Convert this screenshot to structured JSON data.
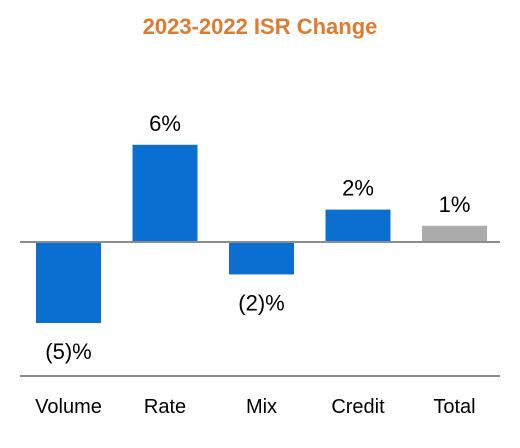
{
  "chart_data": {
    "type": "bar",
    "title": "2023-2022 ISR Change",
    "categories": [
      "Volume",
      "Rate",
      "Mix",
      "Credit",
      "Total"
    ],
    "values": [
      -5,
      6,
      -2,
      2,
      1
    ],
    "data_labels": [
      "(5)%",
      "6%",
      "(2)%",
      "2%",
      "1%"
    ],
    "xlabel": "",
    "ylabel": "",
    "ylim": [
      -6,
      6
    ],
    "grid": false,
    "legend": "none",
    "colors": {
      "title": "#E07A30",
      "bar": "#0A6FD0",
      "total_bar": "#ABABAB",
      "baseline": "#8C8C8C",
      "axis_line": "#8C8C8C"
    }
  }
}
